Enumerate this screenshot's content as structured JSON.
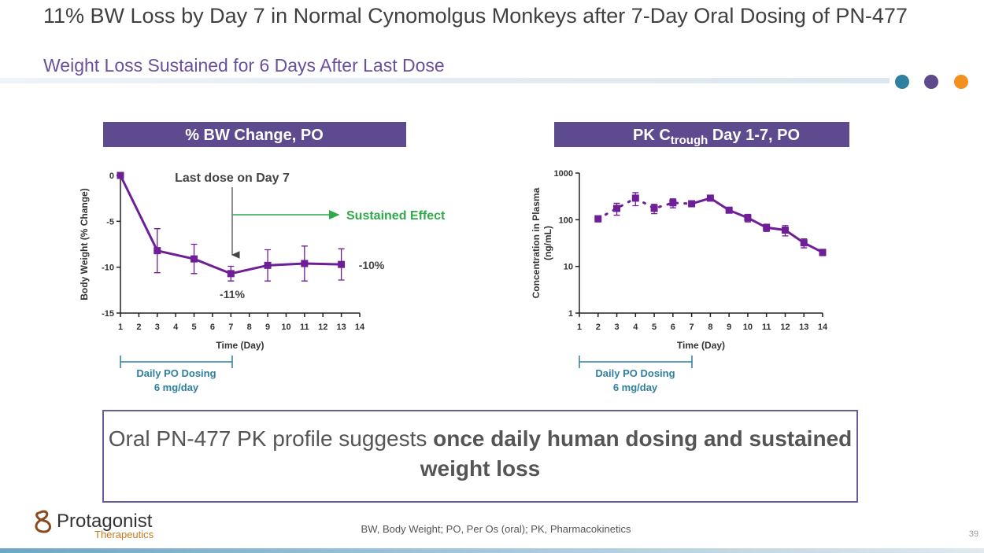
{
  "header": {
    "title": "11% BW Loss by Day 7 in Normal Cynomolgus Monkeys after 7-Day Oral Dosing of PN-477",
    "subtitle": "Weight Loss Sustained for 6 Days After Last Dose"
  },
  "chart_data": [
    {
      "type": "line",
      "title": "% BW Change, PO",
      "xlabel": "Time (Day)",
      "ylabel": "Body Weight (% Change)",
      "xlim": [
        1,
        14
      ],
      "xticks": [
        1,
        2,
        3,
        4,
        5,
        6,
        7,
        8,
        9,
        10,
        11,
        12,
        13,
        14
      ],
      "ylim": [
        -15,
        0
      ],
      "yticks": [
        -15,
        -10,
        -5,
        0
      ],
      "log_y": false,
      "grid": false,
      "series": [
        {
          "color": "#6e1e96",
          "style": "solid",
          "x": [
            1,
            3,
            5,
            7,
            9,
            11,
            13
          ],
          "values": [
            0,
            -8.2,
            -9.1,
            -10.7,
            -9.8,
            -9.6,
            -9.7
          ],
          "errors": [
            0,
            2.4,
            1.6,
            0.8,
            1.7,
            1.9,
            1.7
          ]
        }
      ],
      "annotations": [
        "Last dose on Day 7",
        "Sustained Effect",
        "-11%",
        "-10%",
        "Daily PO Dosing",
        "6 mg/day"
      ]
    },
    {
      "type": "line",
      "title": "PK C",
      "title_sub": "trough",
      "title_end": " Day 1-7, PO",
      "xlabel": "Time (Day)",
      "ylabel": [
        "Concentration in Plasma",
        "(ng/mL)"
      ],
      "xlim": [
        1,
        14
      ],
      "xticks": [
        1,
        2,
        3,
        4,
        5,
        6,
        7,
        8,
        9,
        10,
        11,
        12,
        13,
        14
      ],
      "ylim": [
        1,
        1000
      ],
      "yticks": [
        1,
        10,
        100,
        1000
      ],
      "log_y": true,
      "grid": false,
      "series": [
        {
          "color": "#6e1e96",
          "style": "dotted",
          "x": [
            2,
            3,
            4,
            5,
            6,
            7
          ],
          "values": [
            105,
            175,
            290,
            175,
            230,
            220
          ],
          "errors": [
            15,
            50,
            90,
            40,
            50,
            30
          ]
        },
        {
          "color": "#6e1e96",
          "style": "solid",
          "x": [
            8,
            9,
            10,
            11,
            12,
            13,
            14
          ],
          "values": [
            290,
            160,
            110,
            68,
            60,
            32,
            20
          ],
          "errors": [
            25,
            20,
            20,
            12,
            15,
            7,
            3
          ]
        }
      ],
      "annotations": [
        "Daily PO Dosing",
        "6 mg/day"
      ]
    }
  ],
  "callout": {
    "text": "Oral PN-477 PK profile suggests ",
    "bold": "once daily human dosing and sustained weight loss"
  },
  "footer": {
    "logo": "Protagonist",
    "logo_sub": "Therapeutics",
    "note": "BW, Body Weight; PO, Per Os (oral); PK,  Pharmacokinetics",
    "page": "39"
  }
}
